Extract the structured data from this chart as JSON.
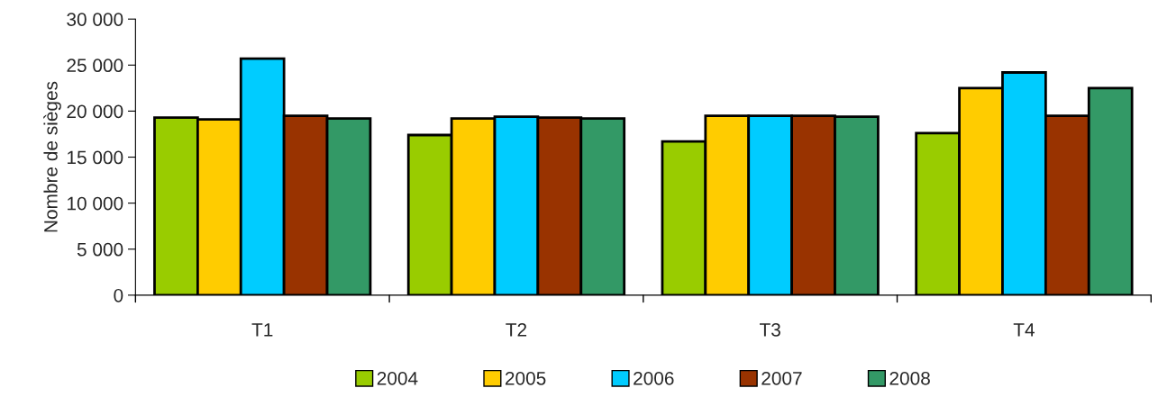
{
  "chart_data": {
    "type": "bar",
    "ylabel": "Nombre de sièges",
    "categories": [
      "T1",
      "T2",
      "T3",
      "T4"
    ],
    "series": [
      {
        "name": "2004",
        "color": "#99cc00",
        "values": [
          19300,
          17400,
          16700,
          17600
        ]
      },
      {
        "name": "2005",
        "color": "#ffcc00",
        "values": [
          19100,
          19200,
          19500,
          22500
        ]
      },
      {
        "name": "2006",
        "color": "#00ccff",
        "values": [
          25700,
          19400,
          19500,
          24200
        ]
      },
      {
        "name": "2007",
        "color": "#993300",
        "values": [
          19500,
          19300,
          19500,
          19500
        ]
      },
      {
        "name": "2008",
        "color": "#339966",
        "values": [
          19200,
          19200,
          19400,
          22500
        ]
      }
    ],
    "ylim": [
      0,
      30000
    ],
    "yticks": [
      0,
      {
        "value": 5000,
        "label": "5 000"
      },
      {
        "value": 10000,
        "label": "10 000"
      },
      {
        "value": 15000,
        "label": "15 000"
      },
      {
        "value": 20000,
        "label": "20 000"
      },
      {
        "value": 25000,
        "label": "25 000"
      },
      {
        "value": 30000,
        "label": "30 000"
      }
    ],
    "grid": false,
    "legend": "bottom"
  }
}
